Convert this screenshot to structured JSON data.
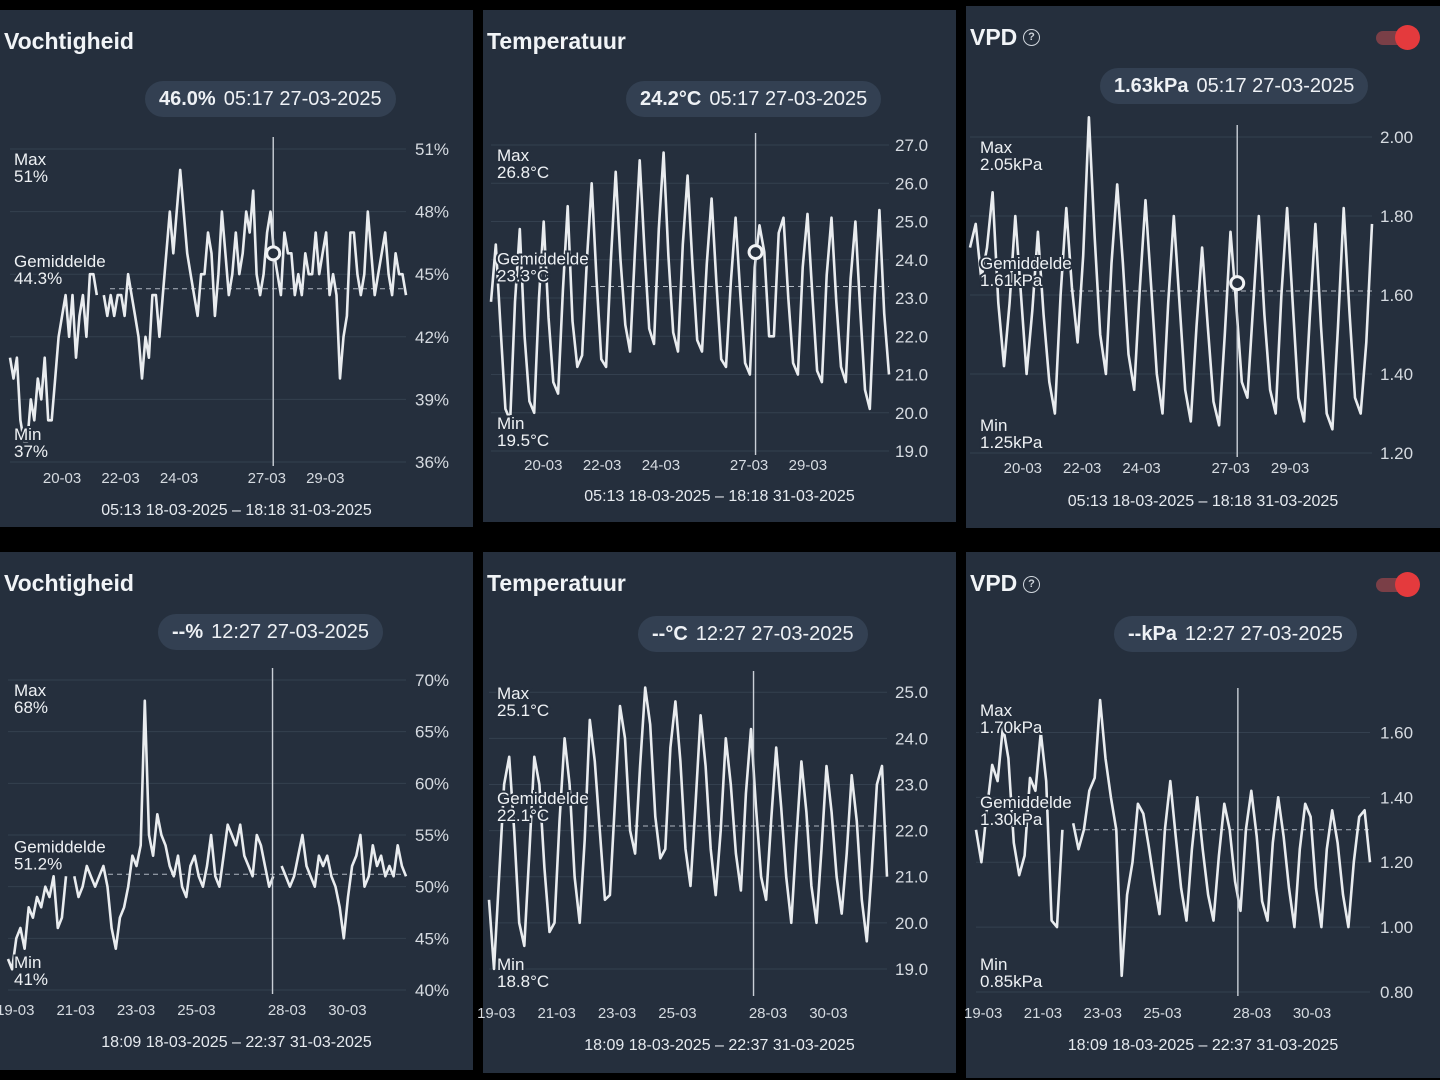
{
  "panels": [
    {
      "title": "Vochtigheid",
      "readout_value": "46.0%",
      "readout_time": "05:17 27-03-2025",
      "date_range": "05:13 18-03-2025 – 18:18 31-03-2025",
      "show_info": false,
      "show_toggle": false
    },
    {
      "title": "Temperatuur",
      "readout_value": "24.2°C",
      "readout_time": "05:17 27-03-2025",
      "date_range": "05:13 18-03-2025 – 18:18 31-03-2025",
      "show_info": false,
      "show_toggle": false
    },
    {
      "title": "VPD",
      "readout_value": "1.63kPa",
      "readout_time": "05:17 27-03-2025",
      "date_range": "05:13 18-03-2025 – 18:18 31-03-2025",
      "show_info": true,
      "show_toggle": true
    },
    {
      "title": "Vochtigheid",
      "readout_value": "--%",
      "readout_time": "12:27 27-03-2025",
      "date_range": "18:09 18-03-2025 – 22:37 31-03-2025",
      "show_info": false,
      "show_toggle": false
    },
    {
      "title": "Temperatuur",
      "readout_value": "--°C",
      "readout_time": "12:27 27-03-2025",
      "date_range": "18:09 18-03-2025 – 22:37 31-03-2025",
      "show_info": false,
      "show_toggle": false
    },
    {
      "title": "VPD",
      "readout_value": "--kPa",
      "readout_time": "12:27 27-03-2025",
      "date_range": "18:09 18-03-2025 – 22:37 31-03-2025",
      "show_info": true,
      "show_toggle": true
    }
  ],
  "info_glyph": "?",
  "colors": {
    "panel_bg": "#252f3d",
    "line": "#e9ecef",
    "toggle_on": "#e43a3d",
    "background": "#000000"
  },
  "chart_data": [
    {
      "type": "line",
      "ylim": [
        36,
        51
      ],
      "yticks": [
        51,
        48,
        45,
        42,
        39,
        36
      ],
      "ytick_labels": [
        "51%",
        "48%",
        "45%",
        "42%",
        "39%",
        "36%"
      ],
      "x_tick_labels": [
        "20-03",
        "22-03",
        "24-03",
        "27-03",
        "29-03"
      ],
      "x_tick_days": [
        20,
        22,
        24,
        27,
        29
      ],
      "x_range_days": [
        18.22,
        31.76
      ],
      "cursor_day": 27.22,
      "marker_value": 46.0,
      "stats": {
        "max_label": "Max",
        "max": "51%",
        "avg_label": "Gemiddelde",
        "avg": "44.3%",
        "min_label": "Min",
        "min": "37%"
      },
      "avg_value": 44.3,
      "series": [
        {
          "values": [
            41,
            40,
            41,
            38,
            37,
            37,
            39,
            38,
            40,
            39,
            41,
            38,
            38,
            40,
            42,
            43,
            44,
            42,
            44,
            41,
            43,
            44,
            42,
            45,
            45,
            44,
            null,
            44,
            43,
            44,
            43,
            44,
            44,
            43,
            45,
            44,
            43,
            42,
            40,
            42,
            41,
            44,
            44,
            42,
            44,
            46,
            48,
            46,
            48,
            50,
            48,
            46,
            45,
            44,
            43,
            45,
            45,
            47,
            46,
            43,
            45,
            48,
            46,
            44,
            45,
            47,
            45,
            46,
            48,
            47,
            49,
            45,
            44,
            45,
            47,
            48,
            46,
            45,
            44,
            47,
            46,
            46,
            44,
            45,
            44,
            46,
            45,
            45,
            47,
            45,
            46,
            47,
            44,
            45,
            44,
            40,
            42,
            43,
            47,
            47,
            45,
            44,
            45,
            48,
            46,
            44,
            45,
            46,
            47,
            45,
            44,
            46,
            45,
            45,
            44
          ]
        }
      ]
    },
    {
      "type": "line",
      "ylim": [
        19,
        27
      ],
      "yticks": [
        27,
        26,
        25,
        24,
        23,
        22,
        21,
        20,
        19
      ],
      "ytick_labels": [
        "27.0",
        "26.0",
        "25.0",
        "24.0",
        "23.0",
        "22.0",
        "21.0",
        "20.0",
        "19.0"
      ],
      "x_tick_labels": [
        "20-03",
        "22-03",
        "24-03",
        "27-03",
        "29-03"
      ],
      "x_tick_days": [
        20,
        22,
        24,
        27,
        29
      ],
      "x_range_days": [
        18.22,
        31.76
      ],
      "cursor_day": 27.22,
      "marker_value": 24.2,
      "stats": {
        "max_label": "Max",
        "max": "26.8°C",
        "avg_label": "Gemiddelde",
        "avg": "23.3°C",
        "min_label": "Min",
        "min": "19.5°C"
      },
      "avg_value": 23.3,
      "series": [
        {
          "values": [
            22.9,
            24.4,
            22.2,
            20.1,
            19.8,
            22.9,
            24.8,
            22.0,
            20.3,
            20.0,
            23.0,
            25.0,
            22.5,
            20.8,
            20.5,
            23.2,
            25.4,
            22.4,
            21.2,
            21.5,
            24.0,
            26.0,
            23.5,
            21.4,
            21.2,
            24.0,
            26.3,
            24.0,
            22.3,
            21.6,
            24.2,
            26.6,
            24.3,
            22.2,
            21.8,
            24.8,
            26.8,
            24.1,
            22.1,
            21.6,
            24.4,
            26.2,
            23.9,
            21.9,
            21.6,
            23.9,
            25.6,
            23.4,
            21.4,
            21.2,
            23.4,
            25.1,
            23.1,
            21.3,
            21.0,
            23.8,
            24.9,
            24.2,
            22.0,
            22.0,
            24.7,
            25.1,
            23.0,
            21.3,
            21.0,
            23.8,
            25.2,
            23.1,
            21.1,
            20.8,
            23.6,
            25.1,
            22.9,
            21.2,
            20.8,
            23.5,
            25.0,
            22.7,
            20.6,
            20.1,
            23.0,
            25.3,
            22.6,
            21.0
          ]
        }
      ]
    },
    {
      "type": "line",
      "ylim": [
        1.2,
        2.0
      ],
      "yticks": [
        2.0,
        1.8,
        1.6,
        1.4,
        1.2
      ],
      "ytick_labels": [
        "2.00",
        "1.80",
        "1.60",
        "1.40",
        "1.20"
      ],
      "x_tick_labels": [
        "20-03",
        "22-03",
        "24-03",
        "27-03",
        "29-03"
      ],
      "x_tick_days": [
        20,
        22,
        24,
        27,
        29
      ],
      "x_range_days": [
        18.22,
        31.76
      ],
      "cursor_day": 27.22,
      "marker_value": 1.63,
      "stats": {
        "max_label": "Max",
        "max": "2.05kPa",
        "avg_label": "Gemiddelde",
        "avg": "1.61kPa",
        "min_label": "Min",
        "min": "1.25kPa"
      },
      "avg_value": 1.61,
      "series": [
        {
          "values": [
            1.72,
            1.78,
            1.64,
            1.72,
            1.86,
            1.58,
            1.42,
            1.58,
            1.8,
            1.6,
            1.4,
            1.56,
            1.76,
            1.55,
            1.38,
            1.3,
            1.6,
            1.82,
            1.62,
            1.48,
            1.7,
            2.05,
            1.75,
            1.5,
            1.4,
            1.68,
            1.88,
            1.68,
            1.45,
            1.36,
            1.62,
            1.84,
            1.62,
            1.4,
            1.3,
            1.58,
            1.8,
            1.58,
            1.36,
            1.28,
            1.52,
            1.72,
            1.52,
            1.33,
            1.27,
            1.5,
            1.76,
            1.58,
            1.38,
            1.34,
            1.57,
            1.8,
            1.55,
            1.36,
            1.3,
            1.6,
            1.82,
            1.58,
            1.34,
            1.28,
            1.54,
            1.78,
            1.52,
            1.3,
            1.26,
            1.52,
            1.82,
            1.56,
            1.34,
            1.3,
            1.48,
            1.78
          ]
        }
      ]
    },
    {
      "type": "line",
      "ylim": [
        40,
        70
      ],
      "yticks": [
        70,
        65,
        60,
        55,
        50,
        45,
        40
      ],
      "ytick_labels": [
        "70%",
        "65%",
        "60%",
        "55%",
        "50%",
        "45%",
        "40%"
      ],
      "x_tick_labels": [
        "19-03",
        "21-03",
        "23-03",
        "25-03",
        "28-03",
        "30-03"
      ],
      "x_tick_days": [
        19,
        21,
        23,
        25,
        28,
        30
      ],
      "x_range_days": [
        18.76,
        31.94
      ],
      "cursor_day": 27.52,
      "stats": {
        "max_label": "Max",
        "max": "68%",
        "avg_label": "Gemiddelde",
        "avg": "51.2%",
        "min_label": "Min",
        "min": "41%"
      },
      "avg_value": 51.2,
      "series": [
        {
          "values": [
            43,
            42,
            45,
            46,
            44,
            48,
            47,
            49,
            48,
            50,
            49,
            51,
            46,
            47,
            51,
            null,
            51,
            49,
            50,
            52,
            51,
            50,
            51,
            52,
            50,
            46,
            44,
            47,
            48,
            50,
            53,
            52,
            54,
            68,
            55,
            53,
            57,
            55,
            54,
            52,
            51,
            53,
            50,
            49,
            52,
            53,
            51,
            50,
            52,
            55,
            51,
            50,
            53,
            56,
            55,
            54,
            56,
            53,
            52,
            51,
            55,
            54,
            52,
            50,
            51,
            null,
            52,
            51,
            50,
            51,
            53,
            55,
            52,
            51,
            50,
            53,
            52,
            53,
            51,
            50,
            48,
            45,
            49,
            52,
            53,
            55,
            50,
            51,
            54,
            52,
            53,
            51,
            52,
            51,
            54,
            52,
            51
          ]
        }
      ]
    },
    {
      "type": "line",
      "ylim": [
        18.5,
        25.2
      ],
      "yticks": [
        25,
        24,
        23,
        22,
        21,
        20,
        19
      ],
      "ytick_labels": [
        "25.0",
        "24.0",
        "23.0",
        "22.0",
        "21.0",
        "20.0",
        "19.0"
      ],
      "x_tick_labels": [
        "19-03",
        "21-03",
        "23-03",
        "25-03",
        "28-03",
        "30-03"
      ],
      "x_tick_days": [
        19,
        21,
        23,
        25,
        28,
        30
      ],
      "x_range_days": [
        18.76,
        31.94
      ],
      "cursor_day": 27.52,
      "stats": {
        "max_label": "Max",
        "max": "25.1°C",
        "avg_label": "Gemiddelde",
        "avg": "22.1°C",
        "min_label": "Min",
        "min": "18.8°C"
      },
      "avg_value": 22.1,
      "series": [
        {
          "values": [
            20.5,
            19.0,
            21.0,
            23.0,
            23.6,
            22.0,
            20.0,
            19.5,
            21.5,
            23.6,
            23.0,
            21.2,
            19.8,
            20.0,
            22.2,
            24.0,
            23.0,
            21.0,
            20.0,
            21.8,
            24.4,
            23.5,
            22.0,
            20.5,
            20.6,
            22.6,
            24.7,
            24.0,
            22.0,
            21.5,
            23.4,
            25.1,
            24.3,
            22.3,
            21.4,
            21.6,
            23.8,
            24.8,
            23.5,
            21.6,
            20.8,
            22.6,
            24.5,
            23.4,
            21.6,
            20.6,
            22.0,
            24.0,
            23.0,
            21.5,
            20.7,
            22.8,
            24.2,
            22.5,
            21.0,
            20.5,
            22.2,
            23.8,
            22.5,
            21.0,
            20.0,
            21.8,
            23.5,
            22.4,
            20.8,
            20.0,
            21.6,
            23.4,
            22.4,
            21.0,
            20.2,
            21.5,
            23.2,
            22.2,
            20.5,
            19.6,
            21.2,
            23.0,
            23.4,
            21.0
          ]
        }
      ]
    },
    {
      "type": "line",
      "ylim": [
        0.8,
        1.7
      ],
      "yticks": [
        1.6,
        1.4,
        1.2,
        1.0,
        0.8
      ],
      "ytick_labels": [
        "1.60",
        "1.40",
        "1.20",
        "1.00",
        "0.80"
      ],
      "x_tick_labels": [
        "19-03",
        "21-03",
        "23-03",
        "25-03",
        "28-03",
        "30-03"
      ],
      "x_tick_days": [
        19,
        21,
        23,
        25,
        28,
        30
      ],
      "x_range_days": [
        18.76,
        31.94
      ],
      "cursor_day": 27.52,
      "stats": {
        "max_label": "Max",
        "max": "1.70kPa",
        "avg_label": "Gemiddelde",
        "avg": "1.30kPa",
        "min_label": "Min",
        "min": "0.85kPa"
      },
      "avg_value": 1.3,
      "series": [
        {
          "values": [
            1.3,
            1.2,
            1.36,
            1.5,
            1.45,
            1.62,
            1.52,
            1.26,
            1.16,
            1.22,
            1.46,
            1.42,
            1.6,
            1.45,
            1.02,
            1.0,
            1.3,
            null,
            1.32,
            1.24,
            1.3,
            1.42,
            1.46,
            1.7,
            1.52,
            1.4,
            1.3,
            0.85,
            1.1,
            1.2,
            1.38,
            1.35,
            1.25,
            1.14,
            1.04,
            1.3,
            1.45,
            1.28,
            1.12,
            1.02,
            1.24,
            1.4,
            1.24,
            1.1,
            1.02,
            1.22,
            1.38,
            1.3,
            1.14,
            1.05,
            1.3,
            1.42,
            1.28,
            1.08,
            1.02,
            1.26,
            1.4,
            1.28,
            1.12,
            1.0,
            1.24,
            1.38,
            1.34,
            1.12,
            1.0,
            1.24,
            1.36,
            1.26,
            1.1,
            1.0,
            1.2,
            1.34,
            1.36,
            1.2
          ]
        }
      ]
    }
  ]
}
